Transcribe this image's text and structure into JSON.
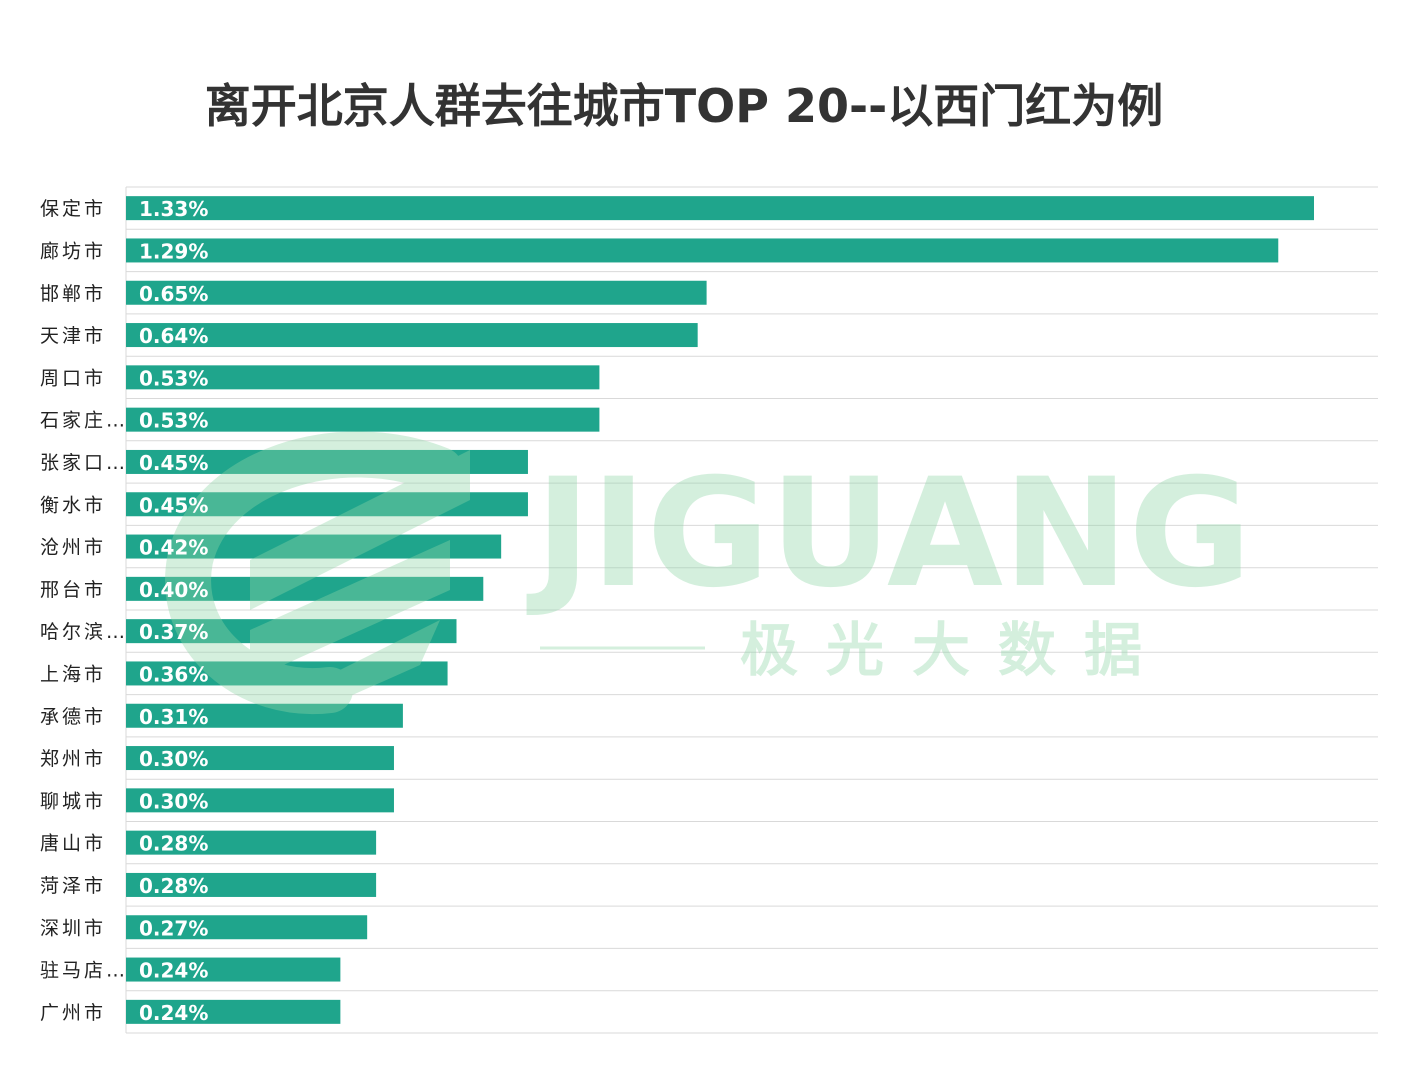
{
  "chart_data": {
    "type": "bar",
    "orientation": "horizontal",
    "title": "离开北京人群去往城市TOP 20--以西门红为例",
    "categories": [
      "保定市",
      "廊坊市",
      "邯郸市",
      "天津市",
      "周口市",
      "石家庄…",
      "张家口…",
      "衡水市",
      "沧州市",
      "邢台市",
      "哈尔滨…",
      "上海市",
      "承德市",
      "郑州市",
      "聊城市",
      "唐山市",
      "菏泽市",
      "深圳市",
      "驻马店…",
      "广州市"
    ],
    "values": [
      1.33,
      1.29,
      0.65,
      0.64,
      0.53,
      0.53,
      0.45,
      0.45,
      0.42,
      0.4,
      0.37,
      0.36,
      0.31,
      0.3,
      0.3,
      0.28,
      0.28,
      0.27,
      0.24,
      0.24
    ],
    "value_labels": [
      "1.33%",
      "1.29%",
      "0.65%",
      "0.64%",
      "0.53%",
      "0.53%",
      "0.45%",
      "0.45%",
      "0.42%",
      "0.40%",
      "0.37%",
      "0.36%",
      "0.31%",
      "0.30%",
      "0.30%",
      "0.28%",
      "0.28%",
      "0.27%",
      "0.24%",
      "0.24%"
    ],
    "unit": "%",
    "xlim": [
      0,
      1.4
    ],
    "grid": true,
    "bar_color": "#1fa58c"
  },
  "watermark": {
    "brand_text": "JIGUANG",
    "brand_subtext": "极光大数据",
    "color": "#8fd6a8"
  }
}
